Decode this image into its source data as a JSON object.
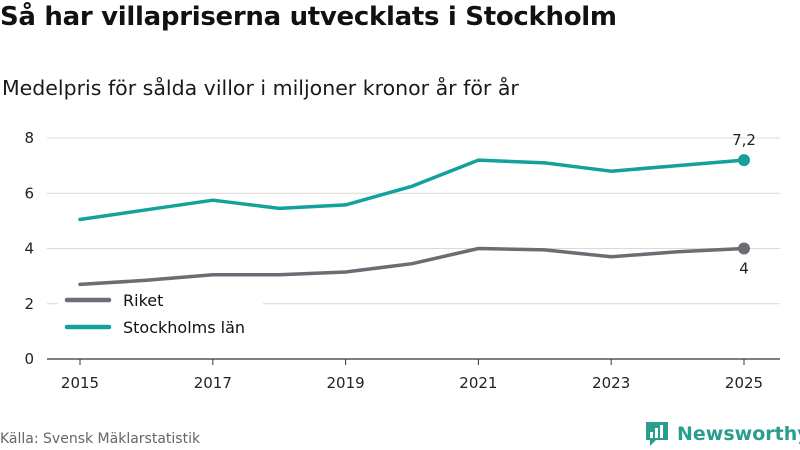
{
  "header": {
    "title": "Så har villapriserna utvecklats i Stockholm",
    "subtitle": "Medelpris för sålda villor i miljoner kronor år för år"
  },
  "footer": {
    "source": "Källa: Svensk Mäklarstatistik",
    "brand": "Newsworthy"
  },
  "colors": {
    "stockholm": "#13a19b",
    "riket": "#6c6c74",
    "grid": "#d9d9d9",
    "brand": "#2a9d8f"
  },
  "chart_data": {
    "type": "line",
    "title": "Så har villapriserna utvecklats i Stockholm",
    "subtitle": "Medelpris för sålda villor i miljoner kronor år för år",
    "xlabel": "",
    "ylabel": "",
    "x": [
      2015,
      2016,
      2017,
      2018,
      2019,
      2020,
      2021,
      2022,
      2023,
      2024,
      2025
    ],
    "xticks": [
      "2015",
      "2017",
      "2019",
      "2021",
      "2023",
      "2025"
    ],
    "ylim": [
      0,
      8
    ],
    "yticks": [
      0,
      2,
      4,
      6,
      8
    ],
    "grid": true,
    "legend_position": "bottom-left",
    "series": [
      {
        "name": "Riket",
        "color": "#6c6c74",
        "values": [
          2.7,
          2.85,
          3.05,
          3.05,
          3.15,
          3.45,
          4.0,
          3.95,
          3.7,
          3.88,
          4.0
        ],
        "end_label": "4"
      },
      {
        "name": "Stockholms län",
        "color": "#13a19b",
        "values": [
          5.05,
          5.4,
          5.75,
          5.45,
          5.58,
          6.25,
          7.2,
          7.1,
          6.8,
          7.0,
          7.2
        ],
        "end_label": "7,2"
      }
    ]
  }
}
